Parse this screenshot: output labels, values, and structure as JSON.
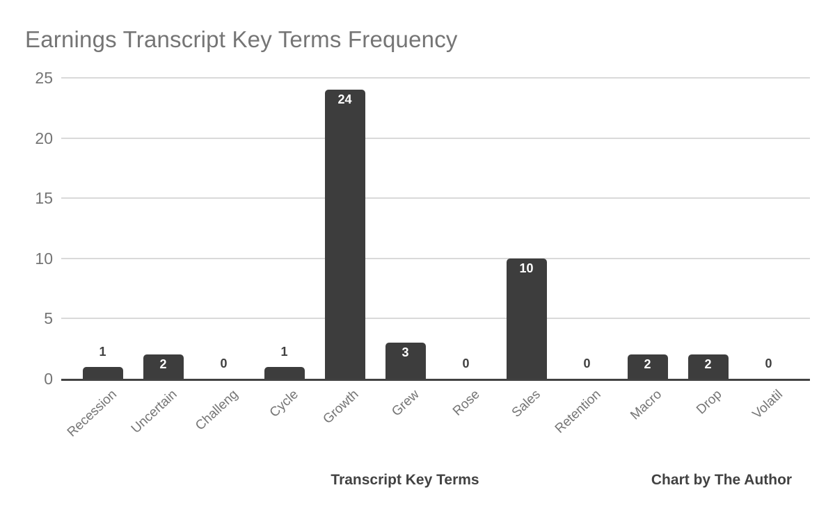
{
  "attribution": "Chart by The Author",
  "chart_data": {
    "type": "bar",
    "title": "Earnings Transcript Key Terms Frequency",
    "xlabel": "Transcript Key Terms",
    "ylabel": "",
    "categories": [
      "Recession",
      "Uncertain",
      "Challeng",
      "Cycle",
      "Growth",
      "Grew",
      "Rose",
      "Sales",
      "Retention",
      "Macro",
      "Drop",
      "Volatil"
    ],
    "values": [
      1,
      2,
      0,
      1,
      24,
      3,
      0,
      10,
      0,
      2,
      2,
      0
    ],
    "ylim": [
      0,
      25
    ],
    "yticks": [
      0,
      5,
      10,
      15,
      20,
      25
    ],
    "grid": true,
    "legend": "none",
    "colors": {
      "bar": "#3d3d3d",
      "title_text": "#757575",
      "axis_tick_text": "#757575",
      "gridline": "#d9d9d9",
      "baseline": "#424242",
      "value_label_inside": "#ffffff",
      "value_label_outside": "#404040",
      "axis_title_text": "#424242",
      "background": "#ffffff"
    }
  }
}
